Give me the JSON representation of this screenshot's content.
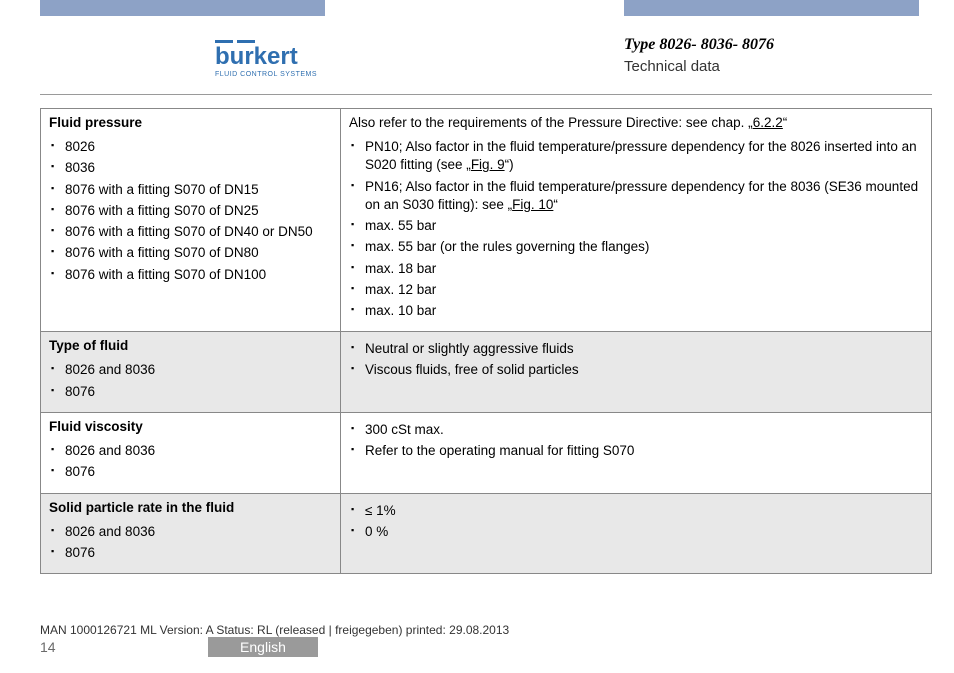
{
  "header": {
    "brand_name": "burkert",
    "brand_tag": "FLUID CONTROL SYSTEMS",
    "type_title": "Type 8026- 8036- 8076",
    "section": "Technical data",
    "brand_color": "#2f6fb0",
    "bar_color": "#8da2c6"
  },
  "table": {
    "rows": [
      {
        "shade": false,
        "left_head": "Fluid pressure",
        "right_lead": "Also refer to the requirements of the Pressure Directive: see chap. „6.2.2“",
        "right_lead_link": "6.2.2",
        "left_items": [
          "8026",
          "8036",
          "8076 with a fitting S070 of DN15",
          "8076 with a fitting S070 of DN25",
          "8076 with a fitting S070 of DN40 or DN50",
          "8076 with a fitting S070 of DN80",
          "8076 with a fitting S070 of DN100"
        ],
        "right_items": [
          "PN10; Also factor in the fluid temperature/pressure dependency for the 8026 inserted into an S020 fitting (see „Fig. 9“)",
          "PN16; Also factor in the fluid temperature/pressure dependency for the 8036 (SE36 mounted on an S030 fitting): see „Fig. 10“",
          "max. 55 bar",
          "max. 55 bar (or the rules governing the flanges)",
          "max. 18 bar",
          "max. 12 bar",
          "max. 10 bar"
        ]
      },
      {
        "shade": true,
        "left_head": "Type of fluid",
        "left_items": [
          "8026 and 8036",
          "8076"
        ],
        "right_items": [
          "Neutral or slightly aggressive fluids",
          "Viscous fluids, free of solid particles"
        ]
      },
      {
        "shade": false,
        "left_head": "Fluid viscosity",
        "left_items": [
          "8026 and 8036",
          "8076"
        ],
        "right_items": [
          "300 cSt max.",
          "Refer to the operating manual for fitting S070"
        ]
      },
      {
        "shade": true,
        "left_head": "Solid particle rate in the fluid",
        "left_items": [
          "8026 and 8036",
          "8076"
        ],
        "right_items": [
          "≤ 1%",
          "0 %"
        ]
      }
    ]
  },
  "footer": {
    "line": "MAN 1000126721 ML Version: A Status: RL (released | freigegeben) printed: 29.08.2013",
    "page": "14",
    "language": "English"
  }
}
